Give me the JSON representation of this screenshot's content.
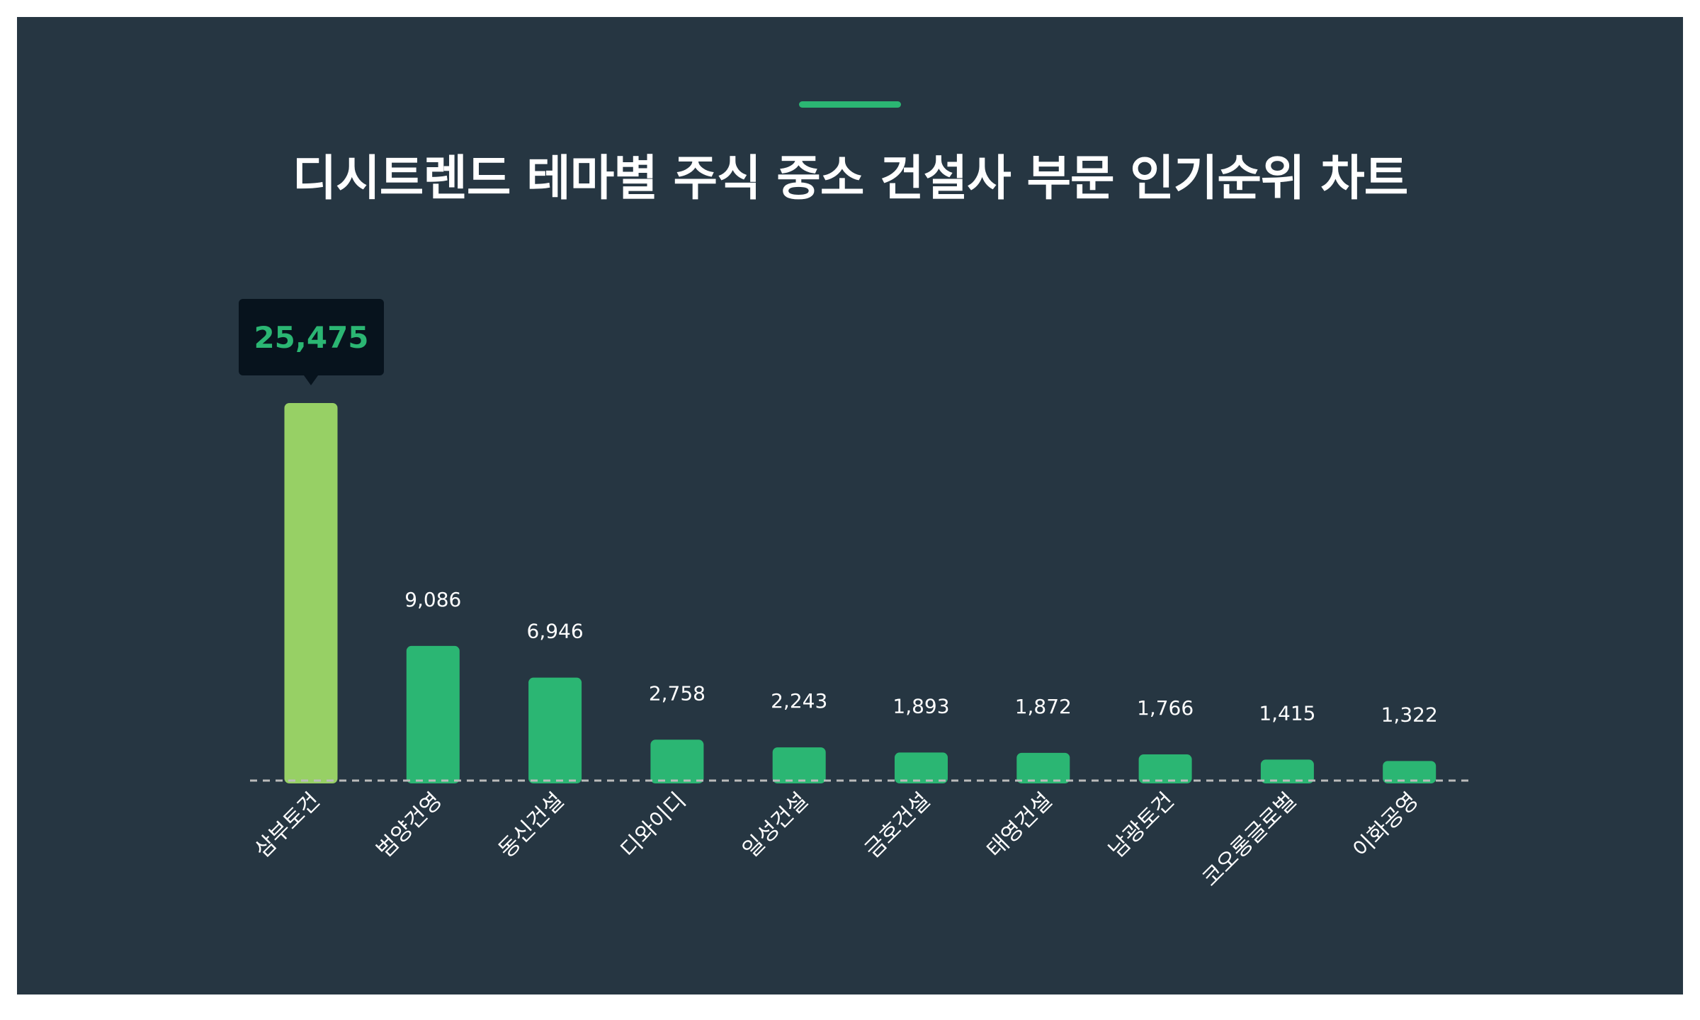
{
  "chart_data": {
    "type": "bar",
    "title": "디시트렌드 테마별 주식 중소 건설사 부문 인기순위 차트",
    "categories": [
      "삼부토건",
      "범양건영",
      "동신건설",
      "디와이디",
      "일성건설",
      "금호건설",
      "태영건설",
      "남광토건",
      "코오롱글로벌",
      "이화공영"
    ],
    "values": [
      25475,
      9086,
      6946,
      2758,
      2243,
      1893,
      1872,
      1766,
      1415,
      1322
    ],
    "value_labels": [
      "25,475",
      "9,086",
      "6,946",
      "2,758",
      "2,243",
      "1,893",
      "1,872",
      "1,766",
      "1,415",
      "1,322"
    ],
    "highlight_index": 0,
    "colors": {
      "highlight": "#97d065",
      "bar": "#2bb673",
      "tooltip_text": "#2bb673",
      "background": "#263642",
      "baseline": "#bbbbbb"
    },
    "ylim": [
      0,
      25475
    ],
    "grid": false,
    "legend": "none"
  }
}
